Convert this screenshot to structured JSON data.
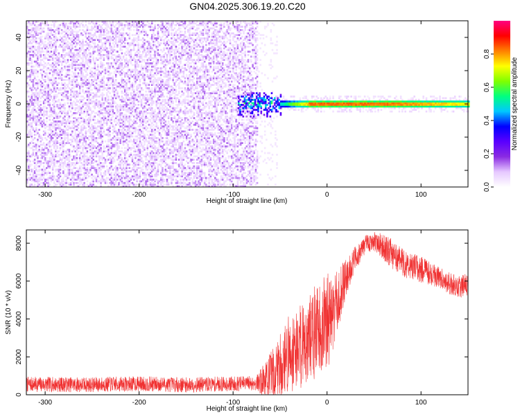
{
  "page": {
    "title": "GN04.2025.306.19.20.C20"
  },
  "chart_data": [
    {
      "type": "heatmap",
      "title": "GN04.2025.306.19.20.C20",
      "xlabel": "Height of straight line (km)",
      "ylabel": "Frequency (Hz)",
      "xlim": [
        -320,
        150
      ],
      "ylim": [
        -50,
        50
      ],
      "x_ticks": [
        -300,
        -200,
        -100,
        0,
        100
      ],
      "x_tick_labels": [
        "-300",
        "-200",
        "-100",
        "0",
        "100"
      ],
      "y_ticks": [
        -40,
        -20,
        0,
        20,
        40
      ],
      "y_tick_labels": [
        "-40",
        "-20",
        "0",
        "20",
        "40"
      ],
      "colorbar": {
        "label": "Normalized spectral amplitude",
        "range": [
          0,
          1
        ],
        "ticks": [
          0.0,
          0.2,
          0.4,
          0.6,
          0.8
        ],
        "tick_labels": [
          "0.0",
          "0.2",
          "0.4",
          "0.6",
          "0.8"
        ],
        "colors": [
          "#ffffff",
          "#e6c8ff",
          "#8a2be2",
          "#5a00ff",
          "#0000ff",
          "#00c8ff",
          "#00ff80",
          "#80ff00",
          "#ffff00",
          "#ff8000",
          "#ff0000",
          "#ff0080"
        ]
      },
      "regions": [
        {
          "name": "noise",
          "x_range": [
            -320,
            -75
          ],
          "freq_range": [
            -50,
            50
          ],
          "amplitude_range": [
            0.05,
            0.15
          ]
        },
        {
          "name": "onset",
          "x_range": [
            -95,
            -50
          ],
          "freq_range": [
            -8,
            7
          ],
          "amplitude_range": [
            0.2,
            0.6
          ]
        },
        {
          "name": "signal",
          "x_range": [
            -50,
            150
          ],
          "freq_center": 0,
          "freq_halfwidth": 2,
          "peak_amplitude": 0.95
        },
        {
          "name": "sidelobes",
          "x_range": [
            -60,
            150
          ],
          "freq_range": [
            -5,
            5
          ],
          "amplitude_range": [
            0.03,
            0.08
          ]
        }
      ]
    },
    {
      "type": "line",
      "xlabel": "Height of straight line (km)",
      "ylabel": "SNR (10 * v/v)",
      "xlim": [
        -320,
        150
      ],
      "ylim": [
        0,
        8700
      ],
      "x_ticks": [
        -300,
        -200,
        -100,
        0,
        100
      ],
      "x_tick_labels": [
        "-300",
        "-200",
        "-100",
        "0",
        "100"
      ],
      "y_ticks": [
        0,
        2000,
        4000,
        6000,
        8000
      ],
      "y_tick_labels": [
        "0",
        "2000",
        "4000",
        "6000",
        "8000"
      ],
      "series": [
        {
          "name": "SNR",
          "color": "#f03232",
          "envelope_x": [
            -320,
            -250,
            -200,
            -150,
            -100,
            -75,
            -60,
            -50,
            -40,
            -30,
            -20,
            -10,
            0,
            10,
            20,
            30,
            40,
            50,
            60,
            70,
            80,
            90,
            100,
            110,
            120,
            130,
            140,
            150
          ],
          "envelope_y": [
            550,
            530,
            580,
            520,
            580,
            620,
            900,
            1500,
            2200,
            2600,
            3000,
            3400,
            3800,
            4700,
            6200,
            7200,
            7900,
            8100,
            7800,
            7400,
            7000,
            6800,
            6600,
            6400,
            6200,
            5900,
            5700,
            5800
          ],
          "noise_amplitude": [
            400,
            400,
            400,
            400,
            400,
            400,
            1400,
            1800,
            2100,
            2300,
            2400,
            2500,
            2600,
            1800,
            1000,
            700,
            500,
            500,
            700,
            800,
            800,
            700,
            700,
            600,
            600,
            600,
            600,
            600
          ]
        }
      ]
    }
  ]
}
